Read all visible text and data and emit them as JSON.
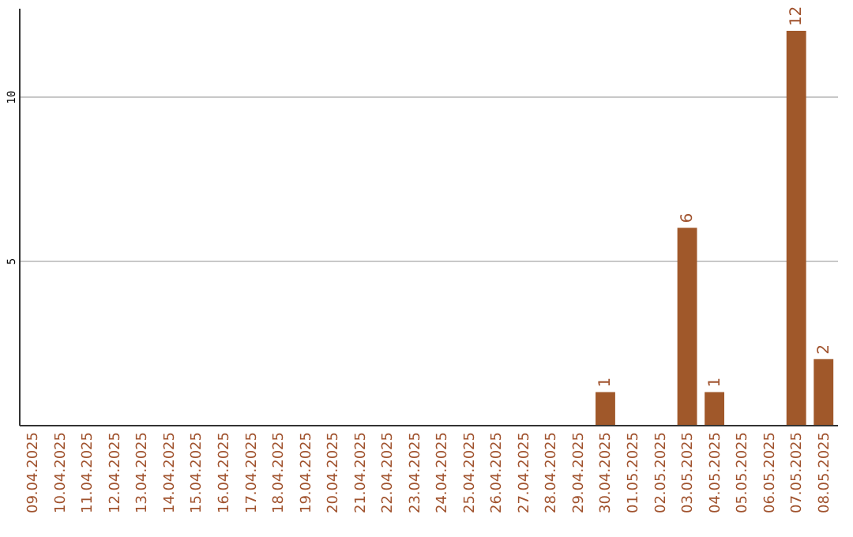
{
  "chart_data": {
    "type": "bar",
    "categories": [
      "09.04.2025",
      "10.04.2025",
      "11.04.2025",
      "12.04.2025",
      "13.04.2025",
      "14.04.2025",
      "15.04.2025",
      "16.04.2025",
      "17.04.2025",
      "18.04.2025",
      "19.04.2025",
      "20.04.2025",
      "21.04.2025",
      "22.04.2025",
      "23.04.2025",
      "24.04.2025",
      "25.04.2025",
      "26.04.2025",
      "27.04.2025",
      "28.04.2025",
      "29.04.2025",
      "30.04.2025",
      "01.05.2025",
      "02.05.2025",
      "03.05.2025",
      "04.05.2025",
      "05.05.2025",
      "06.05.2025",
      "07.05.2025",
      "08.05.2025"
    ],
    "values": [
      0,
      0,
      0,
      0,
      0,
      0,
      0,
      0,
      0,
      0,
      0,
      0,
      0,
      0,
      0,
      0,
      0,
      0,
      0,
      0,
      0,
      1,
      0,
      0,
      6,
      1,
      0,
      0,
      12,
      2
    ],
    "value_labels": [
      null,
      null,
      null,
      null,
      null,
      null,
      null,
      null,
      null,
      null,
      null,
      null,
      null,
      null,
      null,
      null,
      null,
      null,
      null,
      null,
      null,
      "1",
      null,
      null,
      "6",
      "1",
      null,
      null,
      "12",
      "2"
    ],
    "color": "#a0582a",
    "ylim": [
      0,
      12.7
    ],
    "yticks": [
      5,
      10
    ],
    "grid": "y"
  }
}
